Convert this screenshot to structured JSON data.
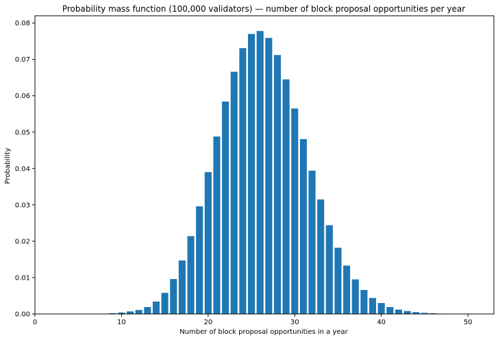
{
  "chart_data": {
    "type": "bar",
    "title": "Probability mass function (100,000 validators) — number of block proposal opportunities per year",
    "xlabel": "Number of block proposal opportunities in a year",
    "ylabel": "Probability",
    "xlim": [
      0,
      53
    ],
    "ylim": [
      0,
      0.082
    ],
    "xticks": [
      0,
      10,
      20,
      30,
      40,
      50
    ],
    "xtick_labels": [
      "0",
      "10",
      "20",
      "30",
      "40",
      "50"
    ],
    "yticks": [
      0.0,
      0.01,
      0.02,
      0.03,
      0.04,
      0.05,
      0.06,
      0.07,
      0.08
    ],
    "ytick_labels": [
      "0.00",
      "0.01",
      "0.02",
      "0.03",
      "0.04",
      "0.05",
      "0.06",
      "0.07",
      "0.08"
    ],
    "grid": false,
    "color": "#1f77b4",
    "x": [
      9,
      10,
      11,
      12,
      13,
      14,
      15,
      16,
      17,
      18,
      19,
      20,
      21,
      22,
      23,
      24,
      25,
      26,
      27,
      28,
      29,
      30,
      31,
      32,
      33,
      34,
      35,
      36,
      37,
      38,
      39,
      40,
      41,
      42,
      43,
      44,
      45,
      46,
      47
    ],
    "values": [
      0.0002,
      0.0004,
      0.0007,
      0.0011,
      0.0019,
      0.0034,
      0.0058,
      0.0096,
      0.0147,
      0.0214,
      0.0296,
      0.039,
      0.0488,
      0.0584,
      0.0666,
      0.0731,
      0.077,
      0.0778,
      0.0759,
      0.0712,
      0.0645,
      0.0565,
      0.0481,
      0.0394,
      0.0315,
      0.0244,
      0.0182,
      0.0133,
      0.0095,
      0.0066,
      0.0044,
      0.003,
      0.0019,
      0.0012,
      0.0008,
      0.0005,
      0.0003,
      0.0002,
      0.0001
    ]
  }
}
